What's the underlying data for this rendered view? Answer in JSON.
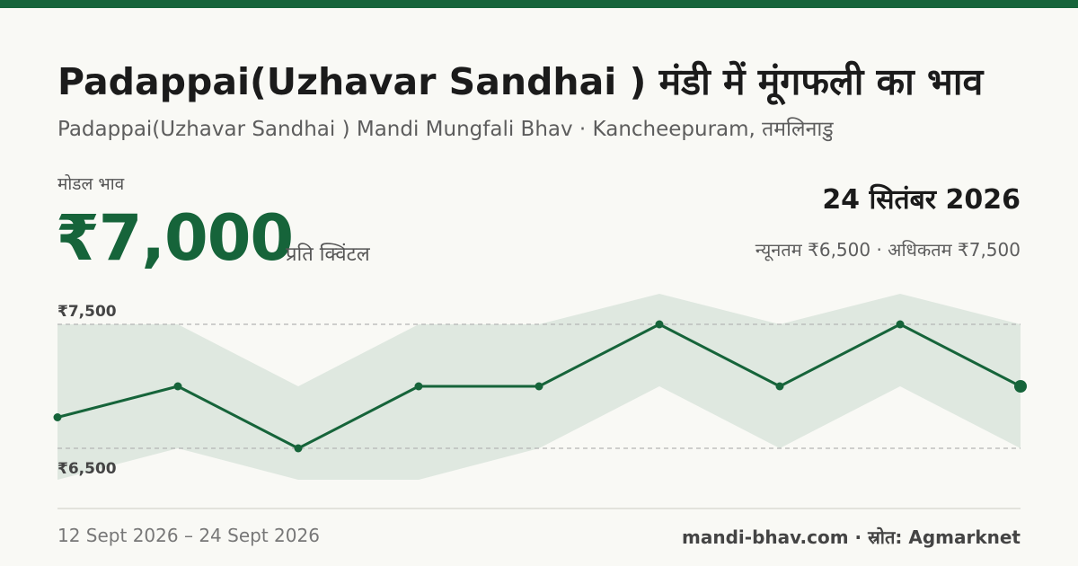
{
  "header": {
    "title": "Padappai(Uzhavar Sandhai ) मंडी में मूंगफली का भाव",
    "subtitle": "Padappai(Uzhavar Sandhai ) Mandi Mungfali Bhav · Kancheepuram, तमलिनाडु"
  },
  "price": {
    "label": "मोडल भाव",
    "value": "₹7,000",
    "unit": "प्रति क्विंटल",
    "date": "24 सितंबर 2026",
    "minmax": "न्यूनतम ₹6,500 · अधिकतम ₹7,500"
  },
  "footer": {
    "range": "12 Sept 2026 – 24 Sept 2026",
    "source": "mandi-bhav.com · स्रोत: Agmarknet"
  },
  "colors": {
    "accent": "#16643a",
    "band": "#dfe8e0",
    "gridline": "#b5b5b5"
  },
  "chart_data": {
    "type": "line",
    "title": "",
    "xlabel": "",
    "ylabel": "",
    "x": [
      "12 Sept 2026",
      "",
      "",
      "",
      "",
      "",
      "",
      "",
      "24 Sept 2026"
    ],
    "ylim": [
      6500,
      7500
    ],
    "y_ticks": [
      "₹7,500",
      "₹6,500"
    ],
    "grid": true,
    "series": [
      {
        "values": [
          6750,
          7000,
          6500,
          7000,
          7000,
          7500,
          7000,
          7500,
          7000
        ]
      }
    ],
    "band": {
      "upper": [
        7500,
        7500,
        7000,
        7500,
        7500,
        8000,
        7500,
        8000,
        7500
      ],
      "lower": [
        6000,
        6500,
        6000,
        6000,
        6500,
        7000,
        6500,
        7000,
        6500
      ]
    }
  }
}
